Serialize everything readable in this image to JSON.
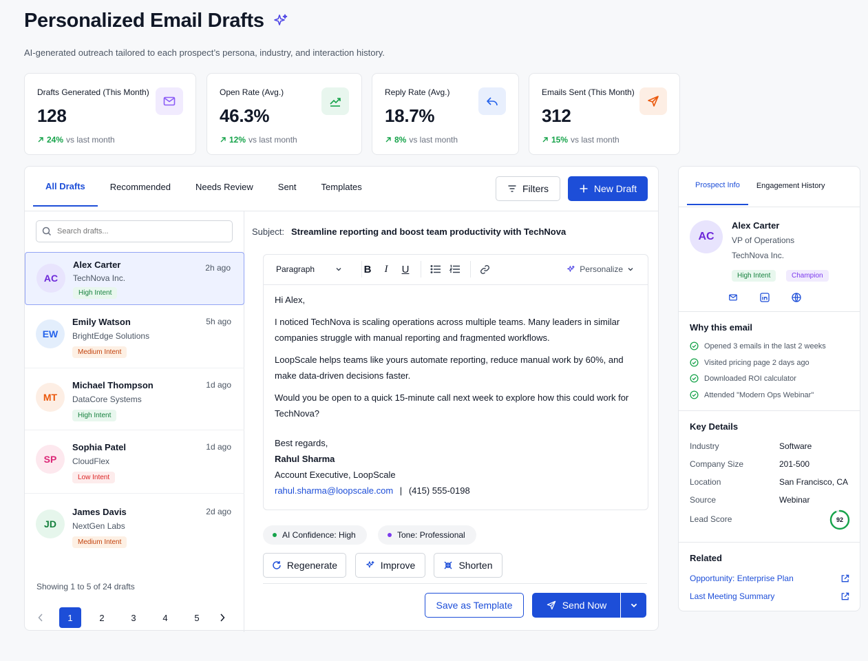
{
  "header": {
    "title": "Personalized Email Drafts",
    "subtitle": "AI-generated outreach tailored to each prospect’s persona, industry, and interaction history."
  },
  "stats": [
    {
      "label": "Drafts Generated (This Month)",
      "value": "128",
      "delta": "24%",
      "delta_text": "vs last month",
      "icon": "mail-icon",
      "color": "#8b5cf6"
    },
    {
      "label": "Open Rate (Avg.)",
      "value": "46.3%",
      "delta": "12%",
      "delta_text": "vs last month",
      "icon": "trend-up-icon",
      "color": "#16a34a"
    },
    {
      "label": "Reply Rate (Avg.)",
      "value": "18.7%",
      "delta": "8%",
      "delta_text": "vs last month",
      "icon": "reply-icon",
      "color": "#2563eb"
    },
    {
      "label": "Emails Sent (This Month)",
      "value": "312",
      "delta": "15%",
      "delta_text": "vs last month",
      "icon": "send-icon",
      "color": "#ea580c"
    }
  ],
  "tabs": [
    "All Drafts",
    "Recommended",
    "Needs Review",
    "Sent",
    "Templates"
  ],
  "actions": {
    "filters": "Filters",
    "new_draft": "New Draft"
  },
  "search": {
    "placeholder": "Search drafts..."
  },
  "drafts": [
    {
      "initials": "AC",
      "name": "Alex Carter",
      "company": "TechNova Inc.",
      "time": "2h ago",
      "intent": "High Intent"
    },
    {
      "initials": "EW",
      "name": "Emily Watson",
      "company": "BrightEdge Solutions",
      "time": "5h ago",
      "intent": "Medium Intent"
    },
    {
      "initials": "MT",
      "name": "Michael Thompson",
      "company": "DataCore Systems",
      "time": "1d ago",
      "intent": "High Intent"
    },
    {
      "initials": "SP",
      "name": "Sophia Patel",
      "company": "CloudFlex",
      "time": "1d ago",
      "intent": "Low Intent"
    },
    {
      "initials": "JD",
      "name": "James Davis",
      "company": "NextGen Labs",
      "time": "2d ago",
      "intent": "Medium Intent"
    }
  ],
  "pagination": {
    "summary": "Showing 1 to 5 of 24 drafts",
    "pages": [
      "1",
      "2",
      "3",
      "4",
      "5"
    ]
  },
  "editor": {
    "subject_label": "Subject:",
    "subject": "Streamline reporting and boost team productivity with TechNova",
    "toolbar": {
      "format": "Paragraph",
      "personalize": "Personalize"
    },
    "body": {
      "greeting": "Hi Alex,",
      "p1": "I noticed TechNova is scaling operations across multiple teams. Many leaders in similar companies struggle with manual reporting and fragmented workflows.",
      "p2": "LoopScale helps teams like yours automate reporting, reduce manual work by 60%, and make data-driven decisions faster.",
      "p3": "Would you be open to a quick 15-minute call next week to explore how this could work for TechNova?",
      "closing": "Best regards,",
      "sender_name": "Rahul Sharma",
      "sender_title": "Account Executive, LoopScale",
      "sender_email": "rahul.sharma@loopscale.com",
      "separator": "|",
      "sender_phone": "(415) 555-0198"
    },
    "confidence": "AI Confidence: High",
    "tone": "Tone: Professional",
    "regenerate": "Regenerate",
    "improve": "Improve",
    "shorten": "Shorten",
    "save_template": "Save as Template",
    "send_now": "Send Now"
  },
  "prospect": {
    "tabs": [
      "Prospect Info",
      "Engagement History"
    ],
    "initials": "AC",
    "name": "Alex Carter",
    "title": "VP of Operations",
    "company": "TechNova Inc.",
    "tags": [
      "High Intent",
      "Champion"
    ],
    "why_title": "Why this email",
    "reasons": [
      "Opened 3 emails in the last 2 weeks",
      "Visited pricing page 2 days ago",
      "Downloaded ROI calculator",
      "Attended \"Modern Ops Webinar\""
    ],
    "key_title": "Key Details",
    "details": [
      {
        "label": "Industry",
        "value": "Software"
      },
      {
        "label": "Company Size",
        "value": "201-500"
      },
      {
        "label": "Location",
        "value": "San Francisco, CA"
      },
      {
        "label": "Source",
        "value": "Webinar"
      },
      {
        "label": "Lead Score",
        "value": "92"
      }
    ],
    "lead_score": 92,
    "related_title": "Related",
    "related": [
      "Opportunity: Enterprise Plan",
      "Last Meeting Summary"
    ]
  }
}
